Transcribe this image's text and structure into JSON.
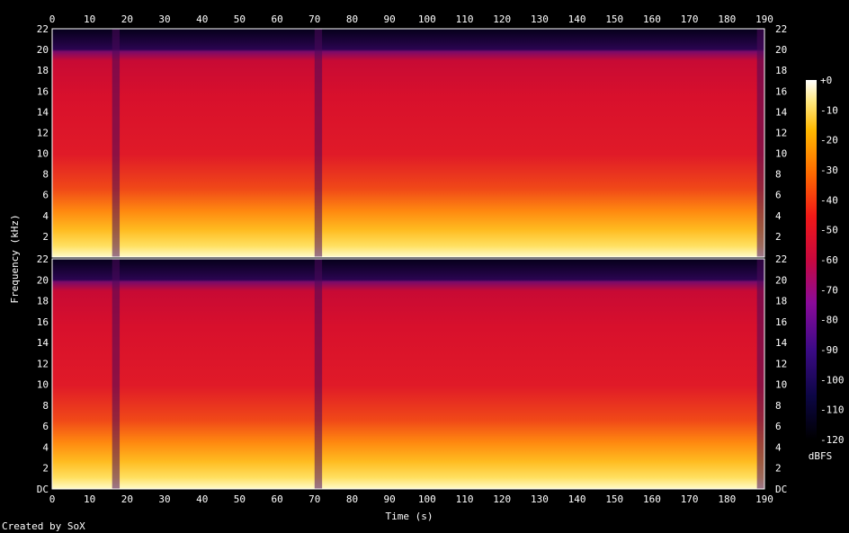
{
  "chart_data": {
    "type": "heatmap",
    "title": "",
    "xlabel": "Time (s)",
    "ylabel": "Frequency (kHz)",
    "xlim": [
      0,
      190
    ],
    "ylim": [
      0,
      22
    ],
    "x_ticks": [
      "0",
      "10",
      "20",
      "30",
      "40",
      "50",
      "60",
      "70",
      "80",
      "90",
      "100",
      "110",
      "120",
      "130",
      "140",
      "150",
      "160",
      "170",
      "180",
      "190"
    ],
    "y_ticks_upper": [
      "22",
      "20",
      "18",
      "16",
      "14",
      "12",
      "10",
      "8",
      "6",
      "4",
      "2"
    ],
    "y_ticks_lower": [
      "22",
      "20",
      "18",
      "16",
      "14",
      "12",
      "10",
      "8",
      "6",
      "4",
      "2",
      "DC"
    ],
    "channels": 2,
    "colorbar": {
      "label": "dBFS",
      "ticks": [
        "+0",
        "-10",
        "-20",
        "-30",
        "-40",
        "-50",
        "-60",
        "-70",
        "-80",
        "-90",
        "-100",
        "-110",
        "-120"
      ],
      "range": [
        -120,
        0
      ]
    },
    "quiet_segments_s": [
      [
        16,
        18
      ],
      [
        70,
        72
      ],
      [
        188,
        190
      ]
    ],
    "cutoff_khz": 20
  },
  "footer": {
    "credit": "Created by SoX"
  },
  "colors": {
    "background": "#000000",
    "text": "#ffffff"
  }
}
